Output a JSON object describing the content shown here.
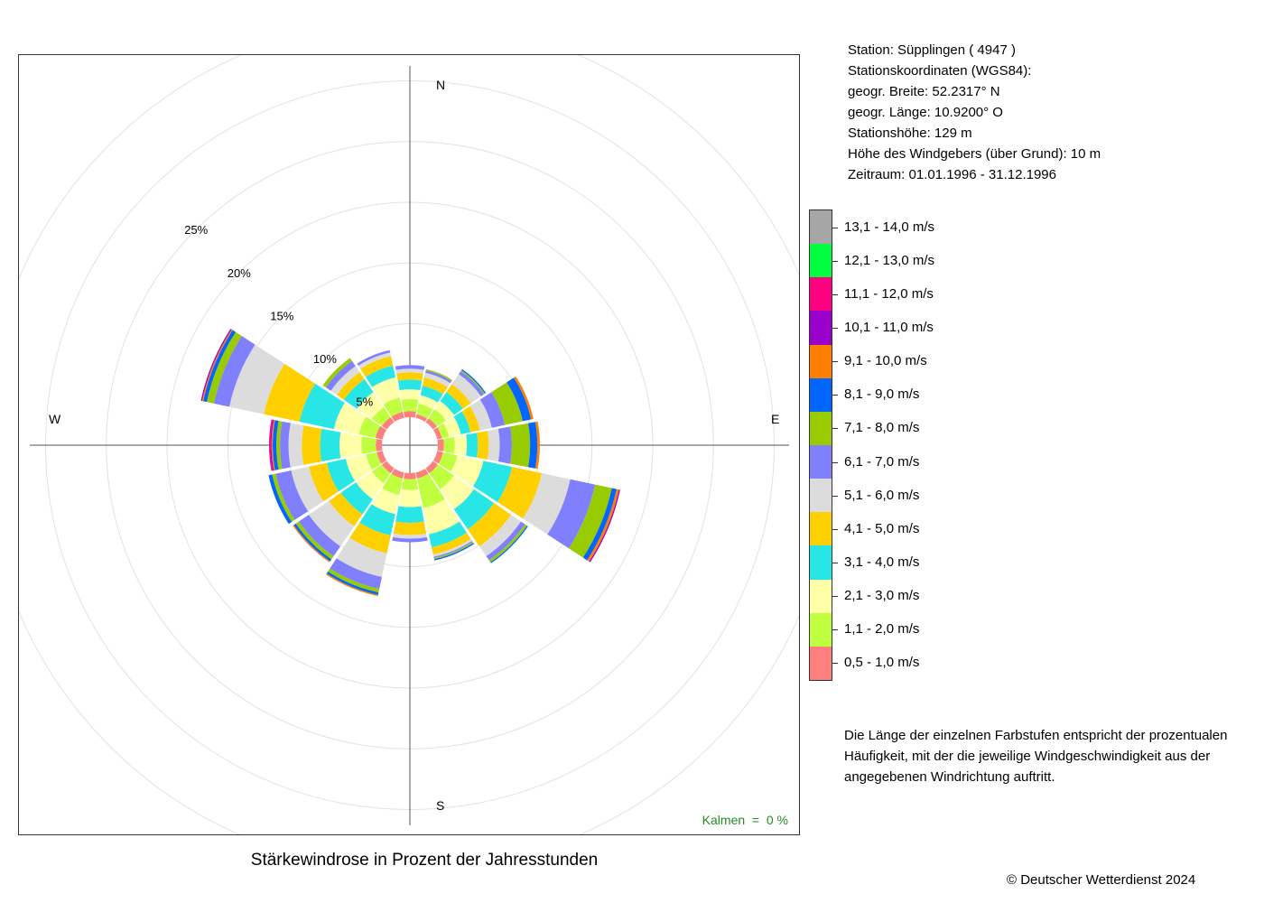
{
  "title": "Stärkewindrose in Prozent der Jahresstunden",
  "copyright": "© Deutscher Wetterdienst  2024",
  "station_info": [
    "Station:  Süpplingen  ( 4947 )",
    "Stationskoordinaten (WGS84):",
    "geogr. Breite: 52.2317° N",
    "geogr. Länge: 10.9200° O",
    "Stationshöhe: 129 m",
    "Höhe des Windgebers (über Grund): 10 m",
    "Zeitraum: 01.01.1996 - 31.12.1996"
  ],
  "calm_label": "Kalmen  =  0 %",
  "explanation": "Die Länge der einzelnen Farbstufen entspricht der prozentualen Häufigkeit, mit der die jeweilige Windgeschwindigkeit aus der angegebenen Windrichtung auftritt.",
  "chart_data": {
    "type": "windrose",
    "directions": [
      "N",
      "NNE",
      "NE",
      "ENE",
      "E",
      "ESE",
      "SE",
      "SSE",
      "S",
      "SSW",
      "SW",
      "WSW",
      "W",
      "WNW",
      "NW",
      "NNW"
    ],
    "direction_labels": [
      "N",
      "E",
      "S",
      "W"
    ],
    "radial_ticks": [
      "5%",
      "10%",
      "15%",
      "20%",
      "25%"
    ],
    "radial_tick_values": [
      5,
      10,
      15,
      20,
      25
    ],
    "inner_radius_percent": 2.3,
    "speed_classes": [
      {
        "label": "0,5 - 1,0 m/s",
        "color": "#FF7F7F"
      },
      {
        "label": "1,1 - 2,0 m/s",
        "color": "#BFFF3F"
      },
      {
        "label": "2,1 - 3,0 m/s",
        "color": "#FFFFA8"
      },
      {
        "label": "3,1 - 4,0 m/s",
        "color": "#29E6E6"
      },
      {
        "label": "4,1 - 5,0 m/s",
        "color": "#FFD000"
      },
      {
        "label": "5,1 - 6,0 m/s",
        "color": "#DCDCDC"
      },
      {
        "label": "6,1 - 7,0 m/s",
        "color": "#8080FF"
      },
      {
        "label": "7,1 - 8,0 m/s",
        "color": "#99CC00"
      },
      {
        "label": "8,1 - 9,0 m/s",
        "color": "#0066FF"
      },
      {
        "label": "9,1 - 10,0 m/s",
        "color": "#FF8000"
      },
      {
        "label": "10,1 - 11,0 m/s",
        "color": "#9900CC"
      },
      {
        "label": "11,1 - 12,0 m/s",
        "color": "#FF0080"
      },
      {
        "label": "12,1 - 13,0 m/s",
        "color": "#00FF40"
      },
      {
        "label": "13,1 - 14,0 m/s",
        "color": "#A6A6A6"
      }
    ],
    "series": [
      {
        "direction": "N",
        "values": [
          0.5,
          1.0,
          0.8,
          0.8,
          0.6,
          0.3,
          0.3
        ]
      },
      {
        "direction": "NNE",
        "values": [
          0.3,
          0.9,
          0.7,
          0.8,
          0.7,
          0.4,
          0.2,
          0.1
        ]
      },
      {
        "direction": "NE",
        "values": [
          0.4,
          0.9,
          0.8,
          0.9,
          0.8,
          1.0,
          0.3,
          0.1,
          0.1
        ]
      },
      {
        "direction": "ENE",
        "values": [
          0.4,
          0.6,
          1.0,
          0.8,
          0.8,
          1.0,
          1.1,
          1.5,
          0.7,
          0.2
        ]
      },
      {
        "direction": "E",
        "values": [
          0.5,
          0.9,
          1.0,
          0.9,
          0.9,
          0.9,
          1.0,
          1.5,
          0.6,
          0.2
        ]
      },
      {
        "direction": "ESE",
        "values": [
          0.5,
          1.2,
          2.2,
          2.4,
          2.5,
          2.4,
          2.1,
          1.4,
          0.4,
          0.2,
          0.1
        ]
      },
      {
        "direction": "SE",
        "values": [
          0.5,
          1.6,
          2.0,
          2.0,
          1.7,
          1.0,
          0.4,
          0.2,
          0.1
        ]
      },
      {
        "direction": "SSE",
        "values": [
          0.5,
          2.5,
          2.2,
          1.1,
          0.6,
          0.2,
          0.1,
          0.1,
          0.1
        ]
      },
      {
        "direction": "S",
        "values": [
          0.5,
          0.9,
          1.4,
          1.3,
          1.0,
          0.3,
          0.3
        ]
      },
      {
        "direction": "SSW",
        "values": [
          0.5,
          1.4,
          1.6,
          1.8,
          1.5,
          2.0,
          1.0,
          0.3,
          0.2,
          0.1
        ]
      },
      {
        "direction": "SW",
        "values": [
          0.5,
          1.0,
          1.6,
          1.5,
          1.2,
          2.0,
          1.0,
          0.3,
          0.2,
          0.1
        ]
      },
      {
        "direction": "WSW",
        "values": [
          0.5,
          0.9,
          1.7,
          1.6,
          1.5,
          1.5,
          1.3,
          0.3,
          0.3
        ]
      },
      {
        "direction": "W",
        "values": [
          0.5,
          1.2,
          1.8,
          1.6,
          1.5,
          1.1,
          0.7,
          0.3,
          0.3,
          0.1,
          0.1,
          0.1
        ]
      },
      {
        "direction": "WNW",
        "values": [
          0.6,
          1.4,
          2.1,
          2.9,
          3.0,
          2.9,
          1.3,
          0.6,
          0.3,
          0.1,
          0.1
        ]
      },
      {
        "direction": "NW",
        "values": [
          0.5,
          1.0,
          1.5,
          1.3,
          0.7,
          0.6,
          0.5,
          0.3
        ]
      },
      {
        "direction": "NNW",
        "values": [
          0.5,
          1.2,
          1.7,
          1.0,
          0.8,
          0.3,
          0.2
        ]
      }
    ]
  }
}
